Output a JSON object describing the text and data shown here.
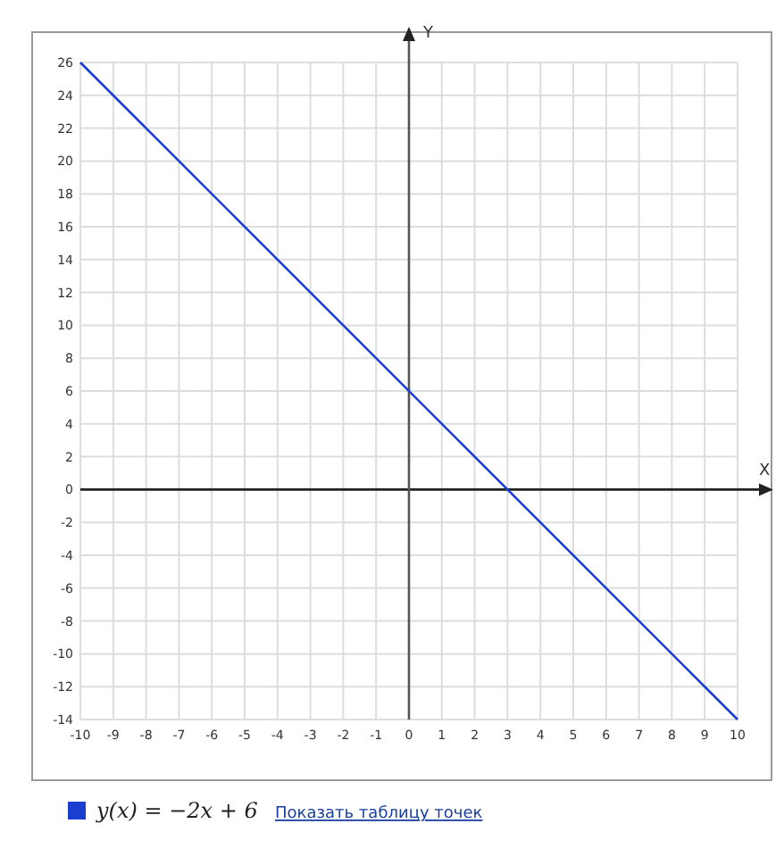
{
  "chart_data": {
    "type": "line",
    "xlabel": "X",
    "ylabel": "Y",
    "x": [
      -10,
      10
    ],
    "series": [
      {
        "name": "y(x) = −2x + 6",
        "color": "#1a3fd0",
        "values": [
          26,
          -14
        ]
      }
    ],
    "xlim": [
      -10,
      10
    ],
    "xticks": [
      -10,
      -9,
      -8,
      -7,
      -6,
      -5,
      -4,
      -3,
      -2,
      -1,
      0,
      1,
      2,
      3,
      4,
      5,
      6,
      7,
      8,
      9,
      10
    ],
    "ylim": [
      -14,
      26
    ],
    "yticks": [
      -14,
      -12,
      -10,
      -8,
      -6,
      -4,
      -2,
      0,
      2,
      4,
      6,
      8,
      10,
      12,
      14,
      16,
      18,
      20,
      22,
      24,
      26
    ],
    "grid": true,
    "legend": "bottom",
    "marker": "none",
    "line_style": "solid",
    "annotations": [
      "Показать таблицу точек"
    ]
  }
}
